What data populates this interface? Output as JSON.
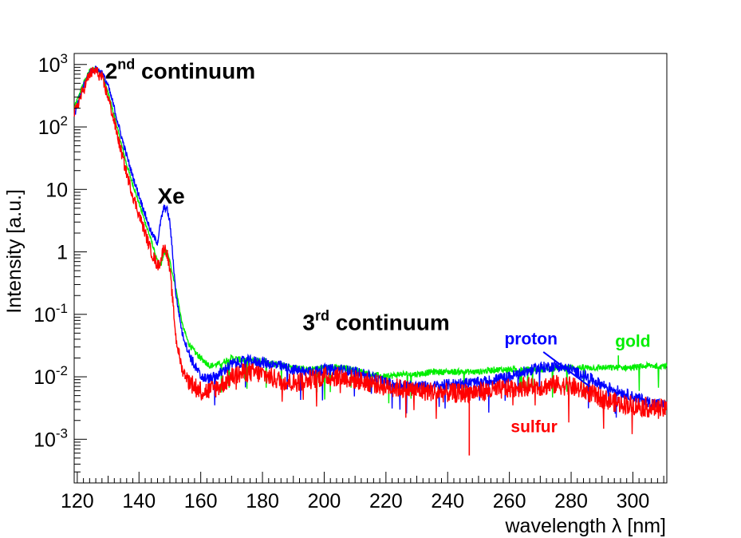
{
  "chart_data": {
    "type": "line",
    "title": "",
    "xlabel": "wavelength λ [nm]",
    "ylabel": "Intensity [a.u.]",
    "xlim": [
      119,
      311
    ],
    "ylim": [
      0.0002,
      1500
    ],
    "yscale": "log",
    "x_ticks": [
      120,
      140,
      160,
      180,
      200,
      220,
      240,
      260,
      280,
      300
    ],
    "y_ticks": [
      {
        "value": 0.001,
        "base": "10",
        "exp": "-3",
        "plain": ""
      },
      {
        "value": 0.01,
        "base": "10",
        "exp": "-2",
        "plain": ""
      },
      {
        "value": 0.1,
        "base": "10",
        "exp": "-1",
        "plain": ""
      },
      {
        "value": 1,
        "base": "",
        "exp": "",
        "plain": "1"
      },
      {
        "value": 10,
        "base": "",
        "exp": "",
        "plain": "10"
      },
      {
        "value": 100,
        "base": "10",
        "exp": "2",
        "plain": ""
      },
      {
        "value": 1000,
        "base": "10",
        "exp": "3",
        "plain": ""
      }
    ],
    "series": [
      {
        "name": "gold",
        "color": "#00ee00",
        "x": [
          119,
          122,
          124,
          126,
          128,
          130,
          132,
          134,
          136,
          138,
          140,
          142,
          144,
          146,
          147,
          148,
          149,
          150,
          152,
          154,
          156,
          158,
          160,
          163,
          166,
          170,
          175,
          180,
          185,
          190,
          195,
          200,
          205,
          210,
          215,
          220,
          225,
          230,
          235,
          240,
          245,
          250,
          255,
          260,
          265,
          270,
          275,
          280,
          285,
          290,
          295,
          300,
          305,
          310
        ],
        "y": [
          200,
          500,
          800,
          900,
          700,
          350,
          150,
          60,
          25,
          12,
          6,
          3,
          1.5,
          0.7,
          0.6,
          0.9,
          1.0,
          0.7,
          0.25,
          0.07,
          0.035,
          0.025,
          0.02,
          0.015,
          0.016,
          0.02,
          0.018,
          0.018,
          0.016,
          0.014,
          0.013,
          0.014,
          0.014,
          0.013,
          0.011,
          0.01,
          0.011,
          0.011,
          0.012,
          0.012,
          0.012,
          0.012,
          0.013,
          0.013,
          0.013,
          0.013,
          0.014,
          0.014,
          0.014,
          0.014,
          0.014,
          0.014,
          0.015,
          0.015
        ],
        "annotations": [
          {
            "label": "gold",
            "x": 300,
            "y": 0.03
          }
        ]
      },
      {
        "name": "proton",
        "color": "#0000ff",
        "x": [
          119,
          122,
          124,
          126,
          128,
          130,
          132,
          134,
          136,
          138,
          140,
          142,
          144,
          146,
          147,
          148,
          149,
          150,
          151,
          152,
          154,
          156,
          158,
          160,
          163,
          166,
          170,
          175,
          180,
          185,
          190,
          195,
          200,
          205,
          210,
          215,
          220,
          225,
          230,
          235,
          240,
          245,
          250,
          255,
          260,
          265,
          270,
          275,
          280,
          285,
          290,
          295,
          300,
          305,
          310
        ],
        "y": [
          150,
          450,
          750,
          850,
          750,
          450,
          200,
          80,
          35,
          16,
          8,
          4,
          2,
          1.4,
          3,
          5,
          5,
          3,
          0.8,
          0.2,
          0.05,
          0.025,
          0.015,
          0.01,
          0.009,
          0.011,
          0.016,
          0.018,
          0.017,
          0.015,
          0.013,
          0.012,
          0.013,
          0.013,
          0.012,
          0.01,
          0.008,
          0.0075,
          0.007,
          0.007,
          0.0075,
          0.008,
          0.008,
          0.009,
          0.01,
          0.012,
          0.014,
          0.015,
          0.013,
          0.01,
          0.0075,
          0.006,
          0.0048,
          0.004,
          0.0035
        ],
        "annotations": [
          {
            "label": "proton",
            "x": 267,
            "y": 0.033
          }
        ]
      },
      {
        "name": "sulfur",
        "color": "#ff0000",
        "x": [
          119,
          122,
          124,
          126,
          128,
          130,
          132,
          134,
          136,
          138,
          140,
          142,
          144,
          146,
          147,
          148,
          149,
          150,
          151,
          152,
          154,
          156,
          158,
          160,
          163,
          166,
          170,
          175,
          180,
          185,
          190,
          195,
          200,
          205,
          210,
          215,
          220,
          225,
          230,
          235,
          240,
          245,
          250,
          255,
          260,
          265,
          270,
          275,
          280,
          285,
          290,
          295,
          300,
          305,
          310
        ],
        "y": [
          160,
          400,
          700,
          800,
          600,
          300,
          120,
          45,
          18,
          8,
          4,
          2,
          1,
          0.6,
          0.7,
          1.2,
          1.0,
          0.5,
          0.15,
          0.04,
          0.013,
          0.009,
          0.007,
          0.006,
          0.006,
          0.007,
          0.01,
          0.012,
          0.011,
          0.009,
          0.008,
          0.009,
          0.01,
          0.01,
          0.009,
          0.008,
          0.007,
          0.0065,
          0.006,
          0.0058,
          0.0055,
          0.0055,
          0.0058,
          0.006,
          0.0065,
          0.007,
          0.007,
          0.0075,
          0.007,
          0.0058,
          0.0045,
          0.0038,
          0.0035,
          0.0032,
          0.003
        ],
        "annotations": [
          {
            "label": "sulfur",
            "x": 268,
            "y": 0.0013
          }
        ]
      }
    ],
    "text_annotations": [
      {
        "label": "2",
        "sup": "nd",
        "rest": " continuum",
        "x": 129,
        "y": 800
      },
      {
        "label": "Xe",
        "sup": "",
        "rest": "",
        "x": 146,
        "y": 8
      },
      {
        "label": "3",
        "sup": "rd",
        "rest": " continuum",
        "x": 193,
        "y": 0.075
      }
    ]
  }
}
